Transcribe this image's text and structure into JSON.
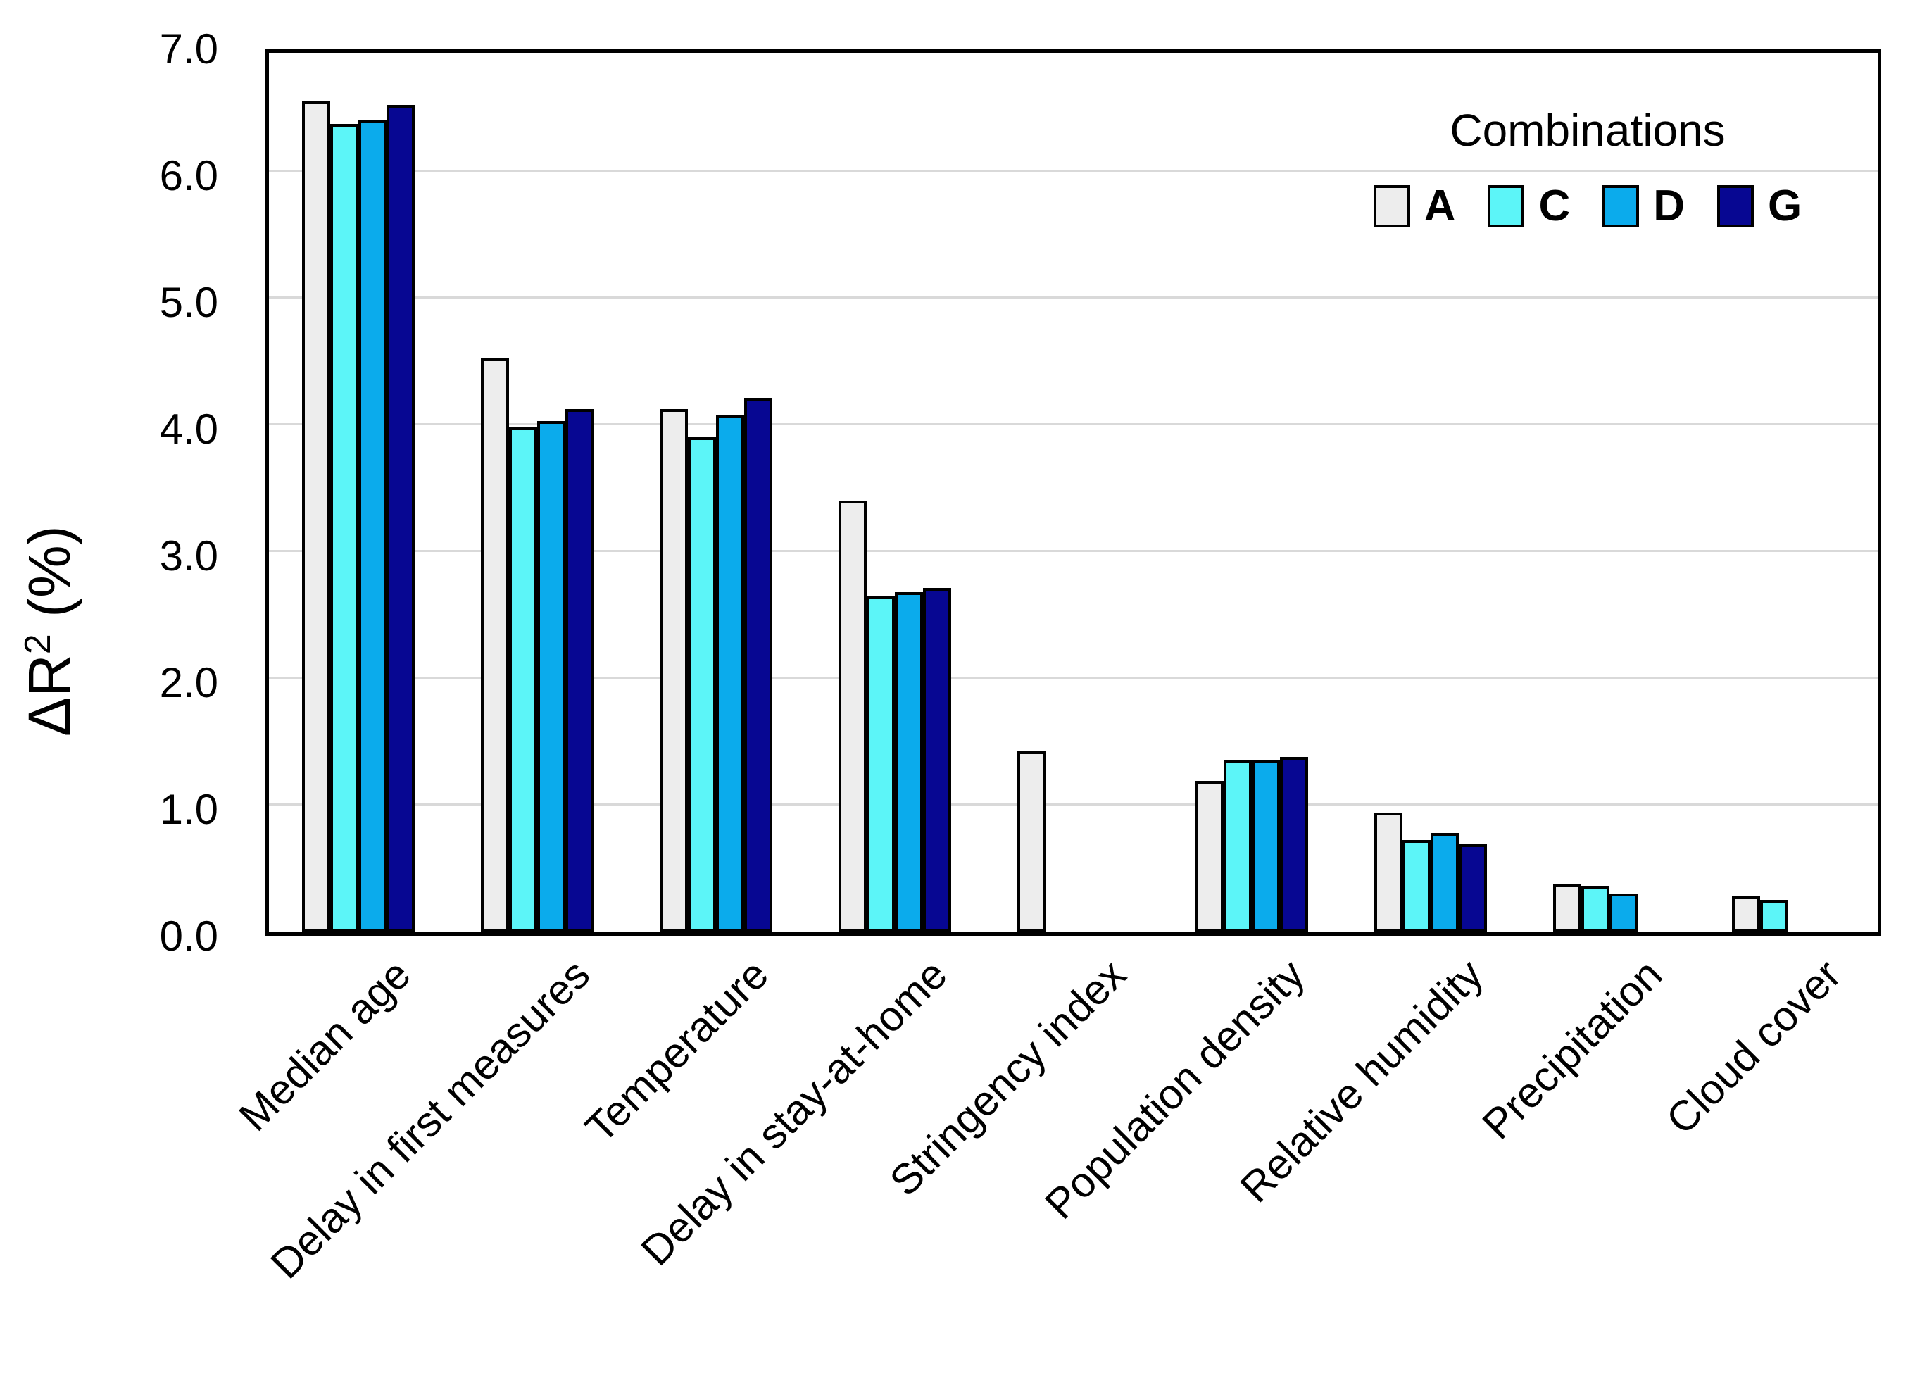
{
  "chart_data": {
    "type": "bar",
    "title": "",
    "ylabel_parts": {
      "prefix": "ΔR",
      "sup": "2",
      "suffix": "  (%)"
    },
    "categories": [
      "Median age",
      "Delay in first measures",
      "Temperature",
      "Delay in stay-at-home",
      "Stringency index",
      "Population density",
      "Relative humidity",
      "Precipitation",
      "Cloud cover"
    ],
    "series": [
      {
        "name": "A",
        "color": "#EDEDED",
        "values": [
          6.55,
          4.53,
          4.12,
          3.4,
          1.42,
          1.19,
          0.94,
          0.38,
          0.28
        ]
      },
      {
        "name": "C",
        "color": "#5CF5F8",
        "values": [
          6.37,
          3.98,
          3.9,
          2.65,
          0,
          1.35,
          0.72,
          0.36,
          0.25
        ]
      },
      {
        "name": "D",
        "color": "#0BABEC",
        "values": [
          6.4,
          4.03,
          4.08,
          2.68,
          0,
          1.35,
          0.78,
          0.3,
          0
        ]
      },
      {
        "name": "G",
        "color": "#070792",
        "values": [
          6.52,
          4.12,
          4.21,
          2.71,
          0,
          1.38,
          0.69,
          0,
          0
        ]
      }
    ],
    "ylim": [
      0,
      7
    ],
    "yticks": [
      "0.0",
      "1.0",
      "2.0",
      "3.0",
      "4.0",
      "5.0",
      "6.0",
      "7.0"
    ],
    "legend_title": "Combinations",
    "legend_position": "top-right",
    "grid": "horizontal",
    "gridline_color": "#D9D9D9",
    "axis_color": "#000000",
    "background_color": "#FFFFFF"
  }
}
